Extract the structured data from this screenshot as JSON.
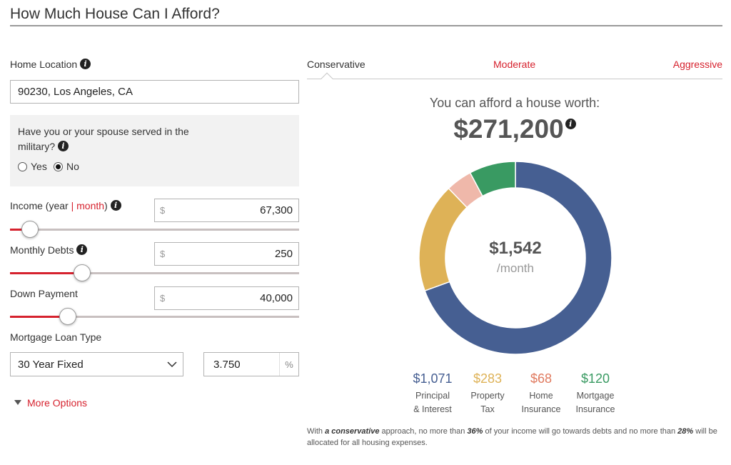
{
  "header": {
    "title": "How Much House Can I Afford?"
  },
  "form": {
    "location": {
      "label": "Home Location",
      "value": "90230, Los Angeles, CA"
    },
    "military": {
      "question": "Have you or your spouse served in the military?",
      "yes_label": "Yes",
      "no_label": "No",
      "selected": "No"
    },
    "income": {
      "label_prefix": "Income (year",
      "separator": "|",
      "month_link": "month",
      "label_suffix": ")",
      "currency": "$",
      "value": "67,300",
      "slider_fraction": 0.07
    },
    "debts": {
      "label": "Monthly Debts",
      "currency": "$",
      "value": "250",
      "slider_fraction": 0.25
    },
    "down_payment": {
      "label": "Down Payment",
      "currency": "$",
      "value": "40,000",
      "slider_fraction": 0.2
    },
    "loan_type": {
      "label": "Mortgage Loan Type",
      "selected": "30 Year Fixed",
      "rate": "3.750",
      "rate_unit": "%"
    },
    "more_options": "More Options"
  },
  "tabs": [
    {
      "label": "Conservative",
      "active": true
    },
    {
      "label": "Moderate",
      "active": false
    },
    {
      "label": "Aggressive",
      "active": false
    }
  ],
  "result": {
    "caption": "You can afford a house worth:",
    "amount": "$271,200",
    "monthly_amount": "$1,542",
    "monthly_unit": "/month"
  },
  "chart_data": {
    "type": "pie",
    "categories": [
      "Principal & Interest",
      "Property Tax",
      "Home Insurance",
      "Mortgage Insurance"
    ],
    "values": [
      1071,
      283,
      68,
      120
    ],
    "colors": [
      "#465f92",
      "#deb257",
      "#efb8aa",
      "#399a62"
    ]
  },
  "breakdown": [
    {
      "value": "$1,071",
      "line1": "Principal",
      "line2": "& Interest",
      "color": "#465f92"
    },
    {
      "value": "$283",
      "line1": "Property",
      "line2": "Tax",
      "color": "#deb257"
    },
    {
      "value": "$68",
      "line1": "Home",
      "line2": "Insurance",
      "color": "#e07a5f"
    },
    {
      "value": "$120",
      "line1": "Mortgage",
      "line2": "Insurance",
      "color": "#399a62"
    }
  ],
  "footnote": {
    "p1": "With ",
    "b1": "a conservative",
    "p2": " approach, no more than ",
    "b2": "36%",
    "p3": " of your income will go towards debts and no more than ",
    "b3": "28%",
    "p4": " will be allocated for all housing expenses."
  },
  "colors": {
    "accent": "#d6222e",
    "text": "#333333"
  }
}
